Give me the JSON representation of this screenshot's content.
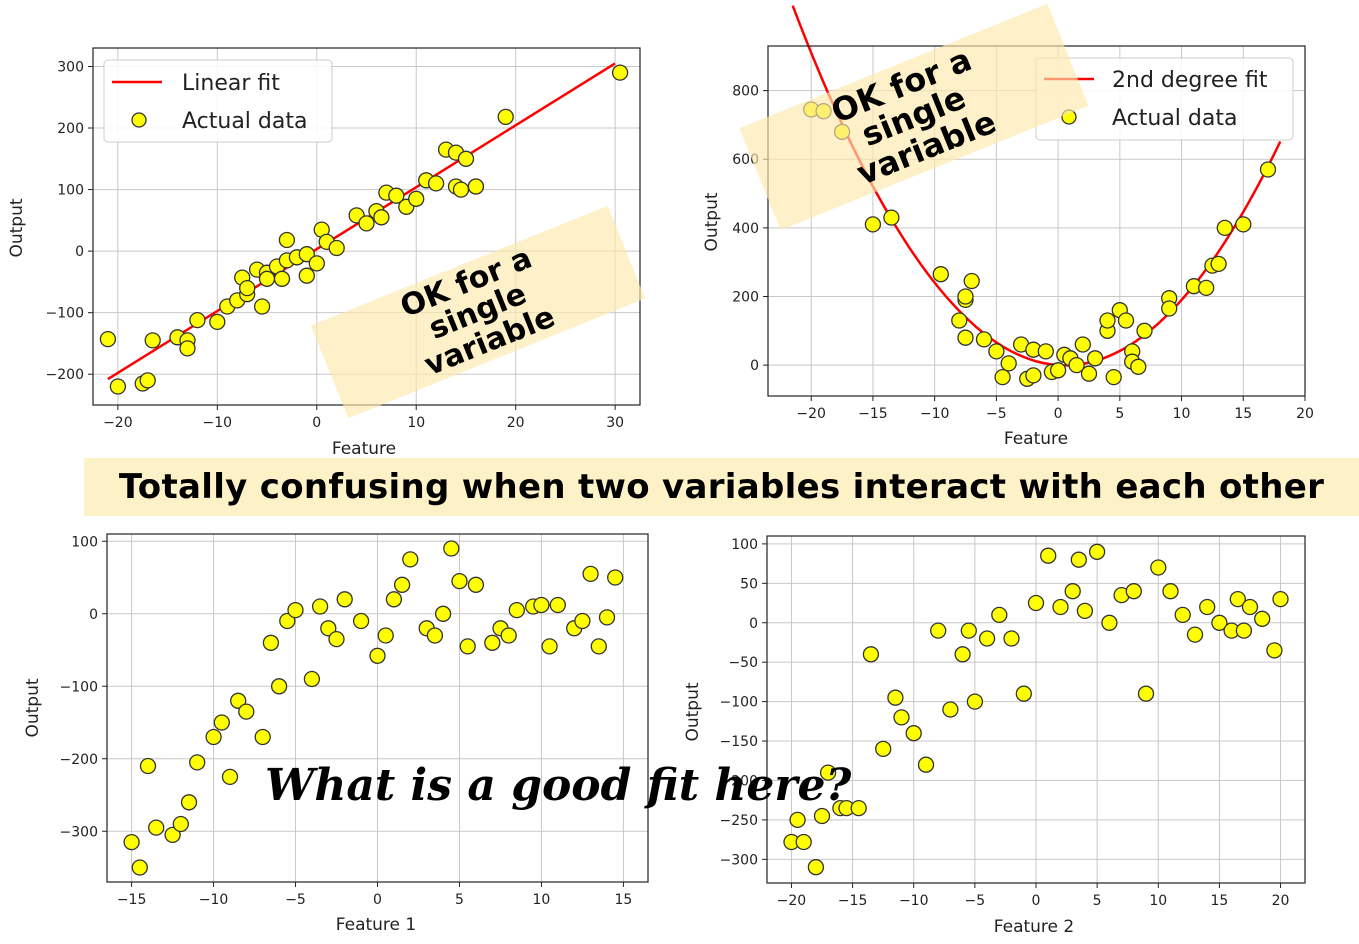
{
  "banner": "Totally confusing when two variables interact with each other",
  "question": "What is a good fit here?",
  "chart_data": [
    {
      "type": "scatter",
      "xlabel": "Feature",
      "ylabel": "Output",
      "xlim": [
        -22.5,
        32.5
      ],
      "ylim": [
        -250,
        330
      ],
      "xticks": [
        -20,
        -10,
        0,
        10,
        20,
        30
      ],
      "yticks": [
        -200,
        -100,
        0,
        100,
        200,
        300
      ],
      "grid": true,
      "legend_placement": "top-left",
      "annotation": "OK for a single variable",
      "fit": {
        "name": "Linear fit",
        "kind": "linear",
        "x": [
          -21,
          30
        ],
        "y": [
          -208,
          305
        ]
      },
      "series": [
        {
          "name": "Actual data",
          "x": [
            -21,
            -20,
            -17.5,
            -17,
            -16.5,
            -14,
            -13,
            -13,
            -12,
            -10,
            -9,
            -8,
            -7.5,
            -7,
            -7,
            -6,
            -5.5,
            -5,
            -5,
            -4,
            -3.5,
            -3,
            -3,
            -2,
            -1,
            -1,
            0,
            0.5,
            1,
            2,
            4,
            5,
            6,
            6.5,
            7,
            8,
            9,
            10,
            11,
            12,
            13,
            14,
            14,
            14.5,
            15,
            16,
            16,
            19,
            30.5
          ],
          "y": [
            -143,
            -220,
            -215,
            -210,
            -145,
            -140,
            -145,
            -158,
            -112,
            -115,
            -90,
            -80,
            -43,
            -70,
            -60,
            -30,
            -90,
            -35,
            -45,
            -25,
            -45,
            18,
            -15,
            -10,
            -5,
            -40,
            -20,
            35,
            15,
            5,
            58,
            45,
            65,
            55,
            95,
            90,
            72,
            85,
            115,
            110,
            165,
            160,
            105,
            100,
            150,
            105,
            105,
            218,
            290
          ]
        }
      ]
    },
    {
      "type": "scatter",
      "xlabel": "Feature",
      "ylabel": "Output",
      "xlim": [
        -23.5,
        20
      ],
      "ylim": [
        -90,
        930
      ],
      "xticks": [
        -20,
        -15,
        -10,
        -5,
        0,
        5,
        10,
        15,
        20
      ],
      "yticks": [
        0,
        200,
        400,
        600,
        800
      ],
      "grid": true,
      "legend_placement": "top-right",
      "annotation": "OK for a single variable",
      "fit": {
        "name": "2nd degree fit",
        "kind": "quadratic",
        "a": 2.15,
        "b": -2.5,
        "c": 0,
        "xmin": -21.5,
        "xmax": 18
      },
      "series": [
        {
          "name": "Actual data",
          "x": [
            -20,
            -19,
            -17.5,
            -15,
            -13.5,
            -9.5,
            -8,
            -7.5,
            -7.5,
            -7.5,
            -7,
            -6,
            -5,
            -4.5,
            -4,
            -3,
            -2.5,
            -2,
            -2,
            -1,
            -0.5,
            0,
            0.5,
            1,
            1.5,
            2,
            2.5,
            3,
            4,
            4,
            4.5,
            5,
            5.5,
            6,
            6,
            6.5,
            7,
            9,
            9,
            11,
            12,
            12.5,
            13,
            13.5,
            15,
            17
          ],
          "y": [
            745,
            740,
            680,
            410,
            430,
            265,
            130,
            80,
            190,
            200,
            245,
            75,
            40,
            -35,
            5,
            60,
            -40,
            45,
            -30,
            40,
            -20,
            -15,
            30,
            20,
            0,
            60,
            -25,
            20,
            100,
            130,
            -35,
            160,
            130,
            40,
            10,
            -5,
            100,
            195,
            165,
            230,
            225,
            290,
            295,
            400,
            410,
            570
          ]
        }
      ]
    },
    {
      "type": "scatter",
      "xlabel": "Feature 1",
      "ylabel": "Output",
      "xlim": [
        -16.5,
        16.5
      ],
      "ylim": [
        -370,
        110
      ],
      "xticks": [
        -15,
        -10,
        -5,
        0,
        5,
        10,
        15
      ],
      "yticks": [
        -300,
        -200,
        -100,
        0,
        100
      ],
      "grid": true,
      "series": [
        {
          "x": [
            -15,
            -14.5,
            -14,
            -13.5,
            -12.5,
            -12,
            -11.5,
            -11,
            -10,
            -9.5,
            -9,
            -8.5,
            -8,
            -7,
            -6.5,
            -6,
            -5.5,
            -5,
            -4,
            -3.5,
            -3,
            -2.5,
            -2,
            -1,
            0,
            0.5,
            1,
            1.5,
            2,
            3,
            3.5,
            4,
            4.5,
            5,
            5.5,
            6,
            7,
            7.5,
            8,
            8.5,
            9.5,
            10,
            10.5,
            11,
            12,
            12.5,
            13,
            13.5,
            14,
            14.5
          ],
          "y": [
            -315,
            -350,
            -210,
            -295,
            -305,
            -290,
            -260,
            -205,
            -170,
            -150,
            -225,
            -120,
            -135,
            -170,
            -40,
            -100,
            -10,
            5,
            -90,
            10,
            -20,
            -35,
            20,
            -10,
            -58,
            -30,
            20,
            40,
            75,
            -20,
            -30,
            0,
            90,
            45,
            -45,
            40,
            -40,
            -20,
            -30,
            5,
            10,
            12,
            -45,
            12,
            -20,
            -10,
            55,
            -45,
            -5,
            50
          ]
        }
      ]
    },
    {
      "type": "scatter",
      "xlabel": "Feature 2",
      "ylabel": "Output",
      "xlim": [
        -22,
        22
      ],
      "ylim": [
        -330,
        110
      ],
      "xticks": [
        -20,
        -15,
        -10,
        -5,
        0,
        5,
        10,
        15,
        20
      ],
      "yticks": [
        -300,
        -250,
        -200,
        -150,
        -100,
        -50,
        0,
        50,
        100
      ],
      "grid": true,
      "series": [
        {
          "x": [
            -20,
            -19.5,
            -19,
            -18,
            -17.5,
            -17,
            -16,
            -15.5,
            -14.5,
            -13.5,
            -12.5,
            -11.5,
            -11,
            -10,
            -9,
            -8,
            -7,
            -6,
            -5.5,
            -5,
            -4,
            -3,
            -2,
            -1,
            0,
            1,
            2,
            3,
            3.5,
            4,
            5,
            6,
            7,
            8,
            9,
            10,
            11,
            12,
            13,
            14,
            15,
            16,
            16.5,
            17,
            17.5,
            18.5,
            19.5,
            20
          ],
          "y": [
            -278,
            -250,
            -278,
            -310,
            -245,
            -190,
            -235,
            -235,
            -235,
            -40,
            -160,
            -95,
            -120,
            -140,
            -180,
            -10,
            -110,
            -40,
            -10,
            -100,
            -20,
            10,
            -20,
            -90,
            25,
            85,
            20,
            40,
            80,
            15,
            90,
            0,
            35,
            40,
            -90,
            70,
            40,
            10,
            -15,
            20,
            0,
            -10,
            30,
            -10,
            20,
            5,
            -35,
            30
          ]
        }
      ]
    }
  ]
}
